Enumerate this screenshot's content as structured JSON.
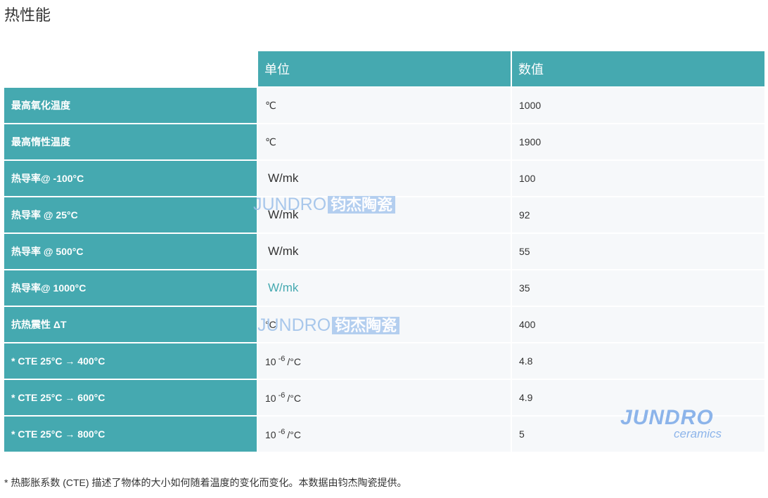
{
  "title": "热性能",
  "headers": [
    "单位",
    "数值"
  ],
  "rows": [
    {
      "label": "最高氧化温度",
      "unit": "℃",
      "value": "1000",
      "style": "small"
    },
    {
      "label": "最高惰性温度",
      "unit": "℃",
      "value": "1900",
      "style": "small"
    },
    {
      "label": "热导率@ -100°C",
      "unit": "W/mk",
      "value": "100",
      "style": "wmk"
    },
    {
      "label": "热导率 @ 25°C",
      "unit": "W/mk",
      "value": "92",
      "style": "wmk"
    },
    {
      "label": "热导率 @ 500°C",
      "unit": "W/mk",
      "value": "55",
      "style": "wmk"
    },
    {
      "label": "热导率@ 1000°C",
      "unit": "W/mk",
      "value": "35",
      "style": "wmk teal"
    },
    {
      "label": "抗热震性 ΔT",
      "unit": "°C",
      "value": "400",
      "style": "small"
    },
    {
      "label": "* CTE 25°C → 400°C",
      "unit_base": "10",
      "unit_exp": "-6",
      "unit_tail": "/°C",
      "value": "4.8"
    },
    {
      "label": "* CTE 25°C → 600°C",
      "unit_base": "10",
      "unit_exp": "-6",
      "unit_tail": "/°C",
      "value": "4.9"
    },
    {
      "label": "* CTE 25°C → 800°C",
      "unit_base": "10",
      "unit_exp": "-6",
      "unit_tail": "/°C",
      "value": "5"
    }
  ],
  "watermark": {
    "latin": "JUNDRO",
    "chinese": "钧杰陶瓷"
  },
  "logo": {
    "brand": "JUNDRO",
    "sub": "ceramics"
  },
  "footnote": "* 热膨胀系数 (CTE) 描述了物体的大小如何随着温度的变化而变化。本数据由钧杰陶瓷提供。",
  "colors": {
    "teal": "#45a9b0",
    "cell": "#f6f8fa",
    "watermark": "#9bbfe9"
  }
}
